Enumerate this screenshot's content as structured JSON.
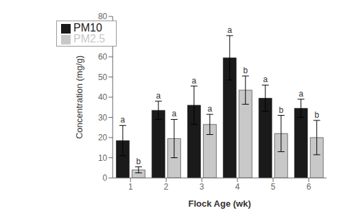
{
  "chart_data": {
    "type": "bar",
    "categories": [
      1,
      2,
      3,
      4,
      5,
      6
    ],
    "series": [
      {
        "name": "PM10",
        "color": "#1a1a1a",
        "values": [
          18.5,
          33.5,
          36.0,
          59.5,
          39.5,
          34.5
        ],
        "errors": [
          7.5,
          4.5,
          9.5,
          11.0,
          6.5,
          4.5
        ],
        "annotations": [
          "a",
          "a",
          "a",
          "a",
          "a",
          "a"
        ]
      },
      {
        "name": "PM2.5",
        "color": "#c8c8c8",
        "values": [
          4.0,
          19.5,
          26.5,
          43.5,
          22.0,
          20.0
        ],
        "errors": [
          1.5,
          9.5,
          5.0,
          7.0,
          9.0,
          8.5
        ],
        "annotations": [
          "b",
          "a",
          "a",
          "b",
          "b",
          "b"
        ]
      }
    ],
    "xlabel": "Flock Age (wk)",
    "ylabel": "Concentration (mg/g)",
    "ylim": [
      0,
      80
    ],
    "yticks": [
      0,
      10,
      20,
      30,
      40,
      50,
      60,
      70,
      80
    ],
    "grid": false,
    "legend": "upper left"
  }
}
